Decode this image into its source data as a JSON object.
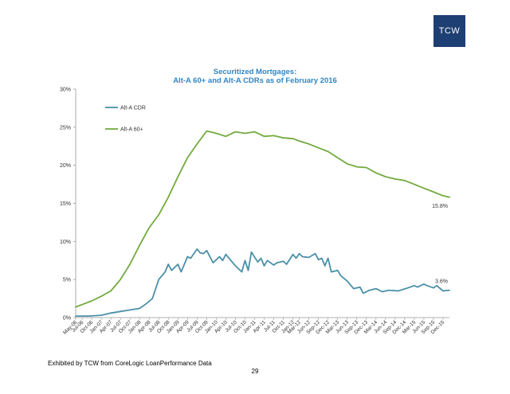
{
  "logo": {
    "text": "TCW",
    "color": "#1d3f73"
  },
  "chart_data": {
    "type": "line",
    "title_line1": "Securitized Mortgages:",
    "title_line2": "Alt-A 60+ and Alt-A CDRs as of February 2016",
    "xlabel": "",
    "ylabel": "",
    "ylim": [
      0,
      30
    ],
    "y_ticks": [
      "0%",
      "5%",
      "10%",
      "15%",
      "20%",
      "25%",
      "30%"
    ],
    "y_tick_values": [
      0,
      5,
      10,
      15,
      20,
      25,
      30
    ],
    "x_start": "May-06",
    "x_end": "Feb-16",
    "x_labels": [
      "May-06",
      "Jul-06",
      "Oct-06",
      "Jan-07",
      "Apr-07",
      "Jul-07",
      "Oct-07",
      "Jan-08",
      "Apr-08",
      "Jul-08",
      "Oct-08",
      "Jan-09",
      "Apr-09",
      "Jul-09",
      "Oct-09",
      "Jan-10",
      "Apr-10",
      "Jul-10",
      "Oct-10",
      "Jan-11",
      "Apr-11",
      "Jul-11",
      "Oct-11",
      "Jan-12",
      "Mar-12",
      "Jun-12",
      "Sep-12",
      "Dec-12",
      "Mar-13",
      "Jun-13",
      "Sep-13",
      "Dec-13",
      "Mar-14",
      "Jun-14",
      "Sep-14",
      "Dec-14",
      "Mar-15",
      "Jun-15",
      "Sep-15",
      "Dec-15"
    ],
    "grid": false,
    "legend_position": "top-left",
    "series": [
      {
        "name": "Alt-A CDR",
        "color": "#4a90a8",
        "end_label": "3.6%",
        "x": [
          "May-06",
          "Sep-06",
          "Jan-07",
          "Apr-07",
          "Jul-07",
          "Oct-07",
          "Jan-08",
          "Mar-08",
          "May-08",
          "Jul-08",
          "Sep-08",
          "Oct-08",
          "Nov-08",
          "Jan-09",
          "Feb-09",
          "Apr-09",
          "May-09",
          "Jul-09",
          "Aug-09",
          "Sep-09",
          "Oct-09",
          "Dec-09",
          "Feb-10",
          "Mar-10",
          "Apr-10",
          "May-10",
          "Jul-10",
          "Sep-10",
          "Oct-10",
          "Nov-10",
          "Dec-10",
          "Feb-11",
          "Mar-11",
          "Apr-11",
          "May-11",
          "Jul-11",
          "Aug-11",
          "Oct-11",
          "Nov-11",
          "Jan-12",
          "Feb-12",
          "Mar-12",
          "Apr-12",
          "Jun-12",
          "Aug-12",
          "Sep-12",
          "Oct-12",
          "Nov-12",
          "Dec-12",
          "Jan-13",
          "Mar-13",
          "Apr-13",
          "Jun-13",
          "Aug-13",
          "Oct-13",
          "Nov-13",
          "Jan-14",
          "Mar-14",
          "May-14",
          "Jul-14",
          "Oct-14",
          "Jan-15",
          "Mar-15",
          "Apr-15",
          "Jun-15",
          "Jul-15",
          "Sep-15",
          "Oct-15",
          "Dec-15",
          "Feb-16"
        ],
        "y": [
          0.2,
          0.2,
          0.3,
          0.6,
          0.8,
          1.0,
          1.2,
          1.8,
          2.5,
          5.0,
          6.0,
          7.0,
          6.2,
          7.0,
          6.0,
          8.0,
          7.8,
          9.0,
          8.5,
          8.4,
          8.8,
          7.2,
          8.0,
          7.5,
          8.3,
          7.8,
          6.8,
          6.0,
          7.5,
          6.2,
          8.6,
          7.3,
          7.8,
          6.8,
          7.5,
          6.9,
          7.2,
          7.4,
          7.0,
          8.3,
          7.8,
          8.4,
          8.0,
          7.9,
          8.4,
          7.6,
          7.8,
          6.8,
          7.8,
          6.0,
          6.2,
          5.5,
          4.8,
          3.8,
          4.0,
          3.2,
          3.6,
          3.8,
          3.4,
          3.6,
          3.5,
          3.9,
          4.2,
          4.0,
          4.4,
          4.2,
          3.9,
          4.2,
          3.5,
          3.6
        ]
      },
      {
        "name": "Alt-A 60+",
        "color": "#72aa3f",
        "end_label": "15.8%",
        "x": [
          "May-06",
          "Jul-06",
          "Oct-06",
          "Jan-07",
          "Apr-07",
          "Jul-07",
          "Oct-07",
          "Jan-08",
          "Apr-08",
          "Jul-08",
          "Oct-08",
          "Jan-09",
          "Apr-09",
          "Jul-09",
          "Oct-09",
          "Jan-10",
          "Apr-10",
          "Jul-10",
          "Oct-10",
          "Jan-11",
          "Apr-11",
          "Jul-11",
          "Oct-11",
          "Jan-12",
          "Mar-12",
          "Jun-12",
          "Sep-12",
          "Dec-12",
          "Mar-13",
          "Jun-13",
          "Sep-13",
          "Dec-13",
          "Mar-14",
          "Jun-14",
          "Sep-14",
          "Dec-14",
          "Mar-15",
          "Jun-15",
          "Sep-15",
          "Dec-15",
          "Feb-16"
        ],
        "y": [
          1.4,
          1.7,
          2.2,
          2.8,
          3.5,
          5.0,
          7.0,
          9.5,
          11.8,
          13.5,
          15.8,
          18.5,
          21.0,
          22.8,
          24.5,
          24.2,
          23.8,
          24.4,
          24.2,
          24.4,
          23.8,
          23.9,
          23.6,
          23.5,
          23.2,
          22.8,
          22.3,
          21.8,
          21.0,
          20.2,
          19.8,
          19.7,
          19.0,
          18.5,
          18.2,
          18.0,
          17.5,
          17.0,
          16.5,
          16.0,
          15.8
        ]
      }
    ]
  },
  "footer": {
    "source": "Exhibited by TCW from CoreLogic LoanPerformance Data",
    "page_number": "29"
  }
}
